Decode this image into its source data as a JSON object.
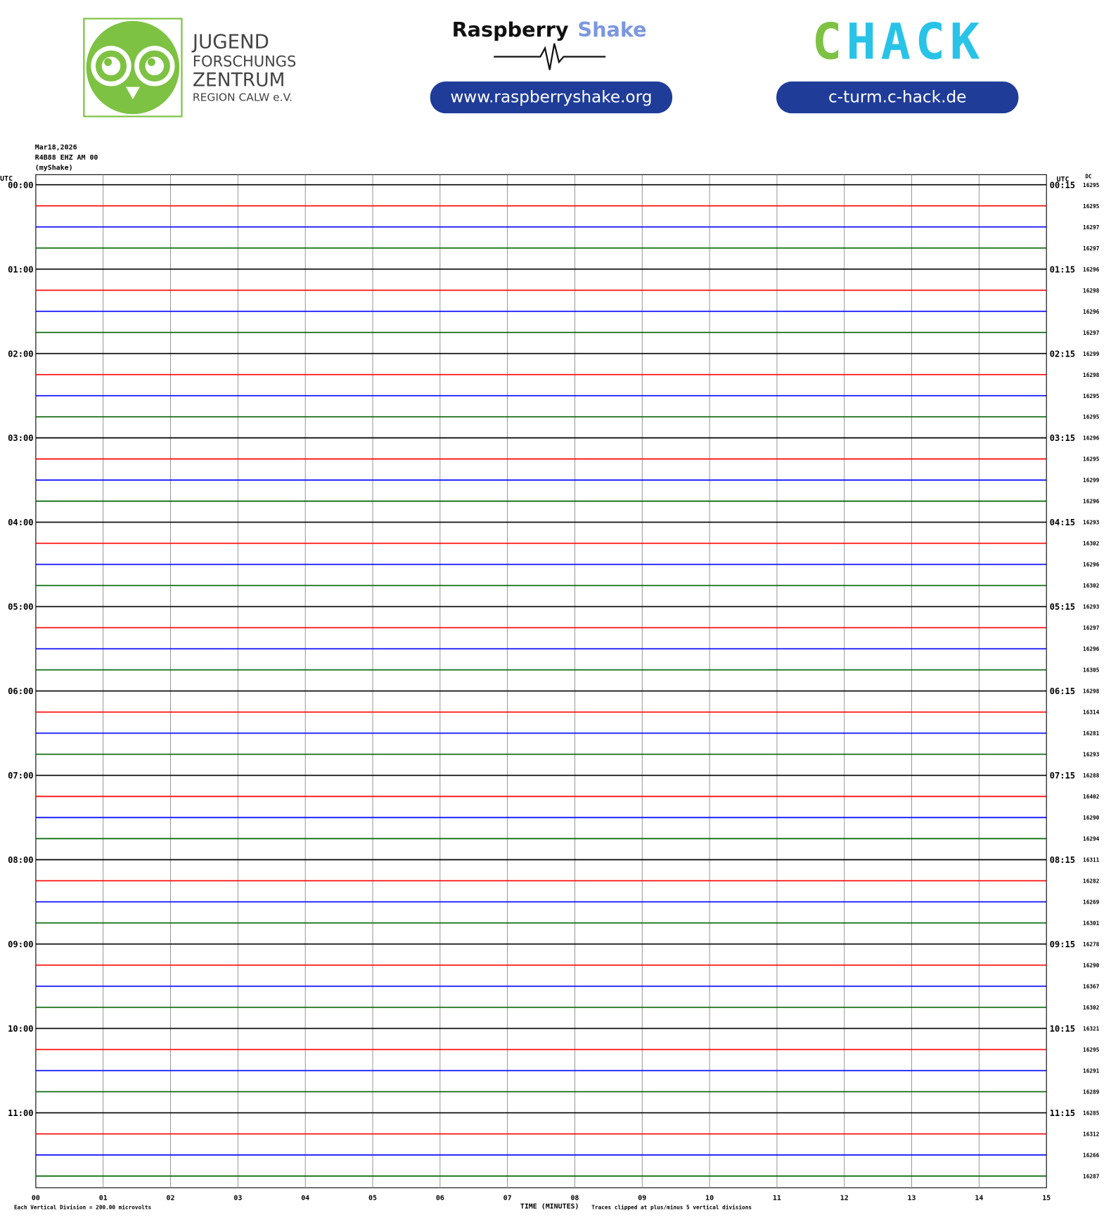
{
  "header": {
    "jfz": [
      "JUGEND",
      "FORSCHUNGS",
      "ZENTRUM",
      "REGION CALW e.V."
    ],
    "rs_brand": [
      "Raspberry",
      "Shake"
    ],
    "rs_url": "www.raspberryshake.org",
    "chack_brand": [
      "C",
      "HACK"
    ],
    "chack_url": "c-turm.c-hack.de"
  },
  "plot": {
    "date": "Mar18,2026",
    "station": "R4B88 EHZ AM 00",
    "name": "(myShake)",
    "left_label": "UTC",
    "right_label": "UTC",
    "dc_label": "DC",
    "left_times": [
      "00:00",
      "01:00",
      "02:00",
      "03:00",
      "04:00",
      "05:00",
      "06:00",
      "07:00",
      "08:00",
      "09:00",
      "10:00",
      "11:00"
    ],
    "right_times": [
      "00:15",
      "01:15",
      "02:15",
      "03:15",
      "04:15",
      "05:15",
      "06:15",
      "07:15",
      "08:15",
      "09:15",
      "10:15",
      "11:15"
    ],
    "dc": [
      16295,
      16295,
      16297,
      16297,
      16296,
      16298,
      16296,
      16297,
      16299,
      16298,
      16295,
      16295,
      16296,
      16295,
      16299,
      16296,
      16293,
      16302,
      16296,
      16302,
      16293,
      16297,
      16296,
      16305,
      16298,
      16314,
      16281,
      16293,
      16288,
      16402,
      16290,
      16294,
      16311,
      16282,
      16269,
      16301,
      16278,
      16290,
      16367,
      16302,
      16321,
      16295,
      16291,
      16289,
      16285,
      16312,
      16266,
      16287
    ],
    "colors": [
      "#000000",
      "#ff0000",
      "#0000ff",
      "#006400"
    ],
    "x_ticks": [
      "00",
      "01",
      "02",
      "03",
      "04",
      "05",
      "06",
      "07",
      "08",
      "09",
      "10",
      "11",
      "12",
      "13",
      "14",
      "15"
    ],
    "x_label": "TIME (MINUTES)",
    "scale_note": "Each Vertical Division =  200.00 microvolts",
    "clip_note": "Traces clipped at plus/minus 5 vertical divisions"
  }
}
